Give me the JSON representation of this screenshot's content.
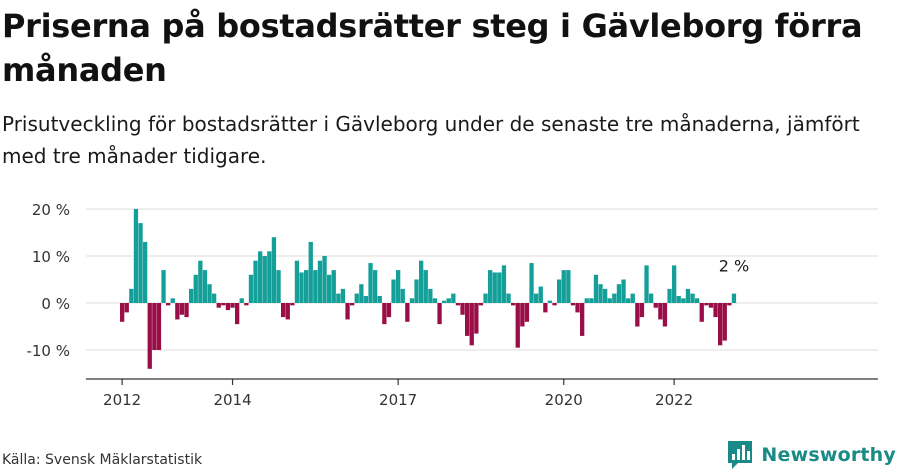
{
  "title": "Priserna på bostadsrätter steg i Gävleborg förra månaden",
  "subtitle": "Prisutveckling för bostadsrätter i Gävleborg under de senaste tre månaderna, jämfört med tre månader tidigare.",
  "source": "Källa: Svensk Mäklarstatistik",
  "brand": "Newsworthy",
  "colors": {
    "positive": "#159f99",
    "negative": "#9a0e47",
    "grid": "#dddddd",
    "axis": "#333333",
    "brand": "#1a8a86"
  },
  "chart_data": {
    "type": "bar",
    "x_start": "2012-01",
    "x_label_ticks": [
      "2012",
      "2014",
      "2017",
      "2020",
      "2022"
    ],
    "y_ticks": [
      -10,
      0,
      10,
      20
    ],
    "y_tick_labels": [
      "-10 %",
      "0 %",
      "10 %",
      "20 %"
    ],
    "ylim": [
      -16,
      22
    ],
    "annotation": "2 %",
    "values": [
      -4,
      -2,
      3,
      20,
      17,
      13,
      -14,
      -10,
      -10,
      7,
      -0.5,
      1,
      -3.5,
      -2.5,
      -3,
      3,
      6,
      9,
      7,
      4,
      2,
      -1,
      -0.5,
      -1.5,
      -1,
      -4.5,
      1,
      -0.5,
      6,
      9,
      11,
      10,
      11,
      14,
      7,
      -3,
      -3.5,
      -0.5,
      9,
      6.5,
      7,
      13,
      7,
      9,
      10,
      6,
      7,
      2,
      3,
      -3.5,
      -0.5,
      2,
      4,
      1.5,
      8.5,
      7,
      1.5,
      -4.5,
      -3,
      5,
      7,
      3,
      -4,
      1,
      5,
      9,
      7,
      3,
      1,
      -4.5,
      0.5,
      1,
      2,
      -0.5,
      -2.5,
      -7,
      -9,
      -6.5,
      -0.5,
      2,
      7,
      6.5,
      6.5,
      8,
      2,
      -0.5,
      -9.5,
      -5,
      -4,
      8.5,
      2,
      3.5,
      -2,
      0.5,
      -0.5,
      5,
      7,
      7,
      -0.5,
      -2,
      -7,
      1,
      1,
      6,
      4,
      3,
      1,
      2,
      4,
      5,
      1,
      2,
      -5,
      -3,
      8,
      2,
      -1,
      -3.5,
      -5,
      3,
      8,
      1.5,
      1,
      3,
      2,
      1,
      -4,
      -0.5,
      -1,
      -3,
      -9,
      -8,
      -0.5,
      2
    ]
  }
}
